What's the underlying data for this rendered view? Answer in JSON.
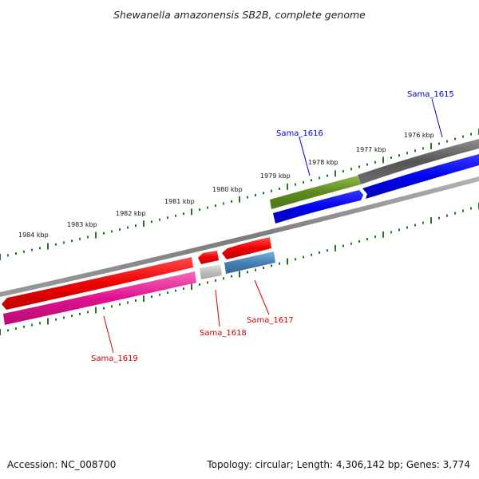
{
  "title": "Shewanella amazonensis SB2B, complete genome",
  "ticks": {
    "color": "#1e7a1e",
    "kbp_labels": [
      "1984 kbp",
      "1983 kbp",
      "1982 kbp",
      "1981 kbp",
      "1980 kbp",
      "1979 kbp",
      "1978 kbp",
      "1977 kbp",
      "1976 kbp"
    ]
  },
  "genes": [
    {
      "id": "Sama_1615",
      "label": "Sama_1615",
      "label_color": "#0000cc",
      "strand": "forward"
    },
    {
      "id": "Sama_1616",
      "label": "Sama_1616",
      "label_color": "#0000cc",
      "strand": "forward"
    },
    {
      "id": "Sama_1617",
      "label": "Sama_1617",
      "label_color": "#cc0000",
      "strand": "reverse"
    },
    {
      "id": "Sama_1618",
      "label": "Sama_1618",
      "label_color": "#cc0000",
      "strand": "reverse"
    },
    {
      "id": "Sama_1619",
      "label": "Sama_1619",
      "label_color": "#cc0000",
      "strand": "reverse"
    }
  ],
  "colors": {
    "backbone": "#8a8a8a",
    "forward_cds": "#0000ee",
    "reverse_cds": "#ee0000",
    "dark_gray_track": "#5c5c5c",
    "olive_track": "#5e8a1e",
    "magenta_track": "#e0108e",
    "light_gray_track": "#bdbdbd",
    "steel_blue_track": "#4682b4"
  },
  "footer": {
    "accession": "Accession: NC_008700",
    "topology": "Topology: circular; Length: 4,306,142 bp; Genes: 3,774"
  }
}
